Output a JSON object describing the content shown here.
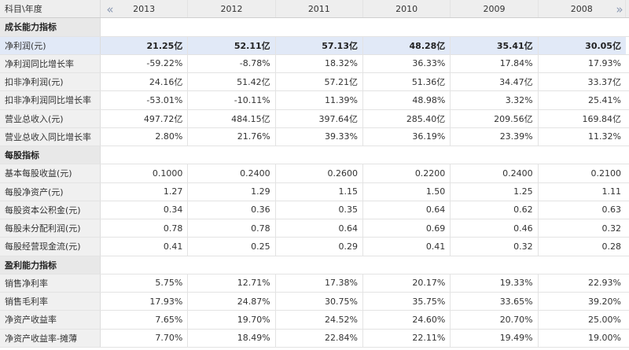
{
  "table": {
    "corner_label": "科目\\年度",
    "years": [
      "2013",
      "2012",
      "2011",
      "2010",
      "2009",
      "2008"
    ],
    "prev_icon_glyph": "«",
    "next_icon_glyph": "»",
    "sections": [
      {
        "title": "成长能力指标",
        "rows": [
          {
            "label": "净利润(元)",
            "highlight": true,
            "values": [
              "21.25亿",
              "52.11亿",
              "57.13亿",
              "48.28亿",
              "35.41亿",
              "30.05亿"
            ]
          },
          {
            "label": "净利润同比增长率",
            "values": [
              "-59.22%",
              "-8.78%",
              "18.32%",
              "36.33%",
              "17.84%",
              "17.93%"
            ]
          },
          {
            "label": "扣非净利润(元)",
            "values": [
              "24.16亿",
              "51.42亿",
              "57.21亿",
              "51.36亿",
              "34.47亿",
              "33.37亿"
            ]
          },
          {
            "label": "扣非净利润同比增长率",
            "values": [
              "-53.01%",
              "-10.11%",
              "11.39%",
              "48.98%",
              "3.32%",
              "25.41%"
            ]
          },
          {
            "label": "营业总收入(元)",
            "values": [
              "497.72亿",
              "484.15亿",
              "397.64亿",
              "285.40亿",
              "209.56亿",
              "169.84亿"
            ]
          },
          {
            "label": "营业总收入同比增长率",
            "values": [
              "2.80%",
              "21.76%",
              "39.33%",
              "36.19%",
              "23.39%",
              "11.32%"
            ]
          }
        ]
      },
      {
        "title": "每股指标",
        "rows": [
          {
            "label": "基本每股收益(元)",
            "values": [
              "0.1000",
              "0.2400",
              "0.2600",
              "0.2200",
              "0.2400",
              "0.2100"
            ]
          },
          {
            "label": "每股净资产(元)",
            "values": [
              "1.27",
              "1.29",
              "1.15",
              "1.50",
              "1.25",
              "1.11"
            ]
          },
          {
            "label": "每股资本公积金(元)",
            "values": [
              "0.34",
              "0.36",
              "0.35",
              "0.64",
              "0.62",
              "0.63"
            ]
          },
          {
            "label": "每股未分配利润(元)",
            "values": [
              "0.78",
              "0.78",
              "0.64",
              "0.69",
              "0.46",
              "0.32"
            ]
          },
          {
            "label": "每股经营现金流(元)",
            "values": [
              "0.41",
              "0.25",
              "0.29",
              "0.41",
              "0.32",
              "0.28"
            ]
          }
        ]
      },
      {
        "title": "盈利能力指标",
        "rows": [
          {
            "label": "销售净利率",
            "values": [
              "5.75%",
              "12.71%",
              "17.38%",
              "20.17%",
              "19.33%",
              "22.93%"
            ]
          },
          {
            "label": "销售毛利率",
            "values": [
              "17.93%",
              "24.87%",
              "30.75%",
              "35.75%",
              "33.65%",
              "39.20%"
            ]
          },
          {
            "label": "净资产收益率",
            "values": [
              "7.65%",
              "19.70%",
              "24.52%",
              "24.60%",
              "20.70%",
              "25.00%"
            ]
          },
          {
            "label": "净资产收益率-摊薄",
            "values": [
              "7.70%",
              "18.49%",
              "22.84%",
              "22.11%",
              "19.49%",
              "19.00%"
            ]
          }
        ]
      }
    ]
  }
}
